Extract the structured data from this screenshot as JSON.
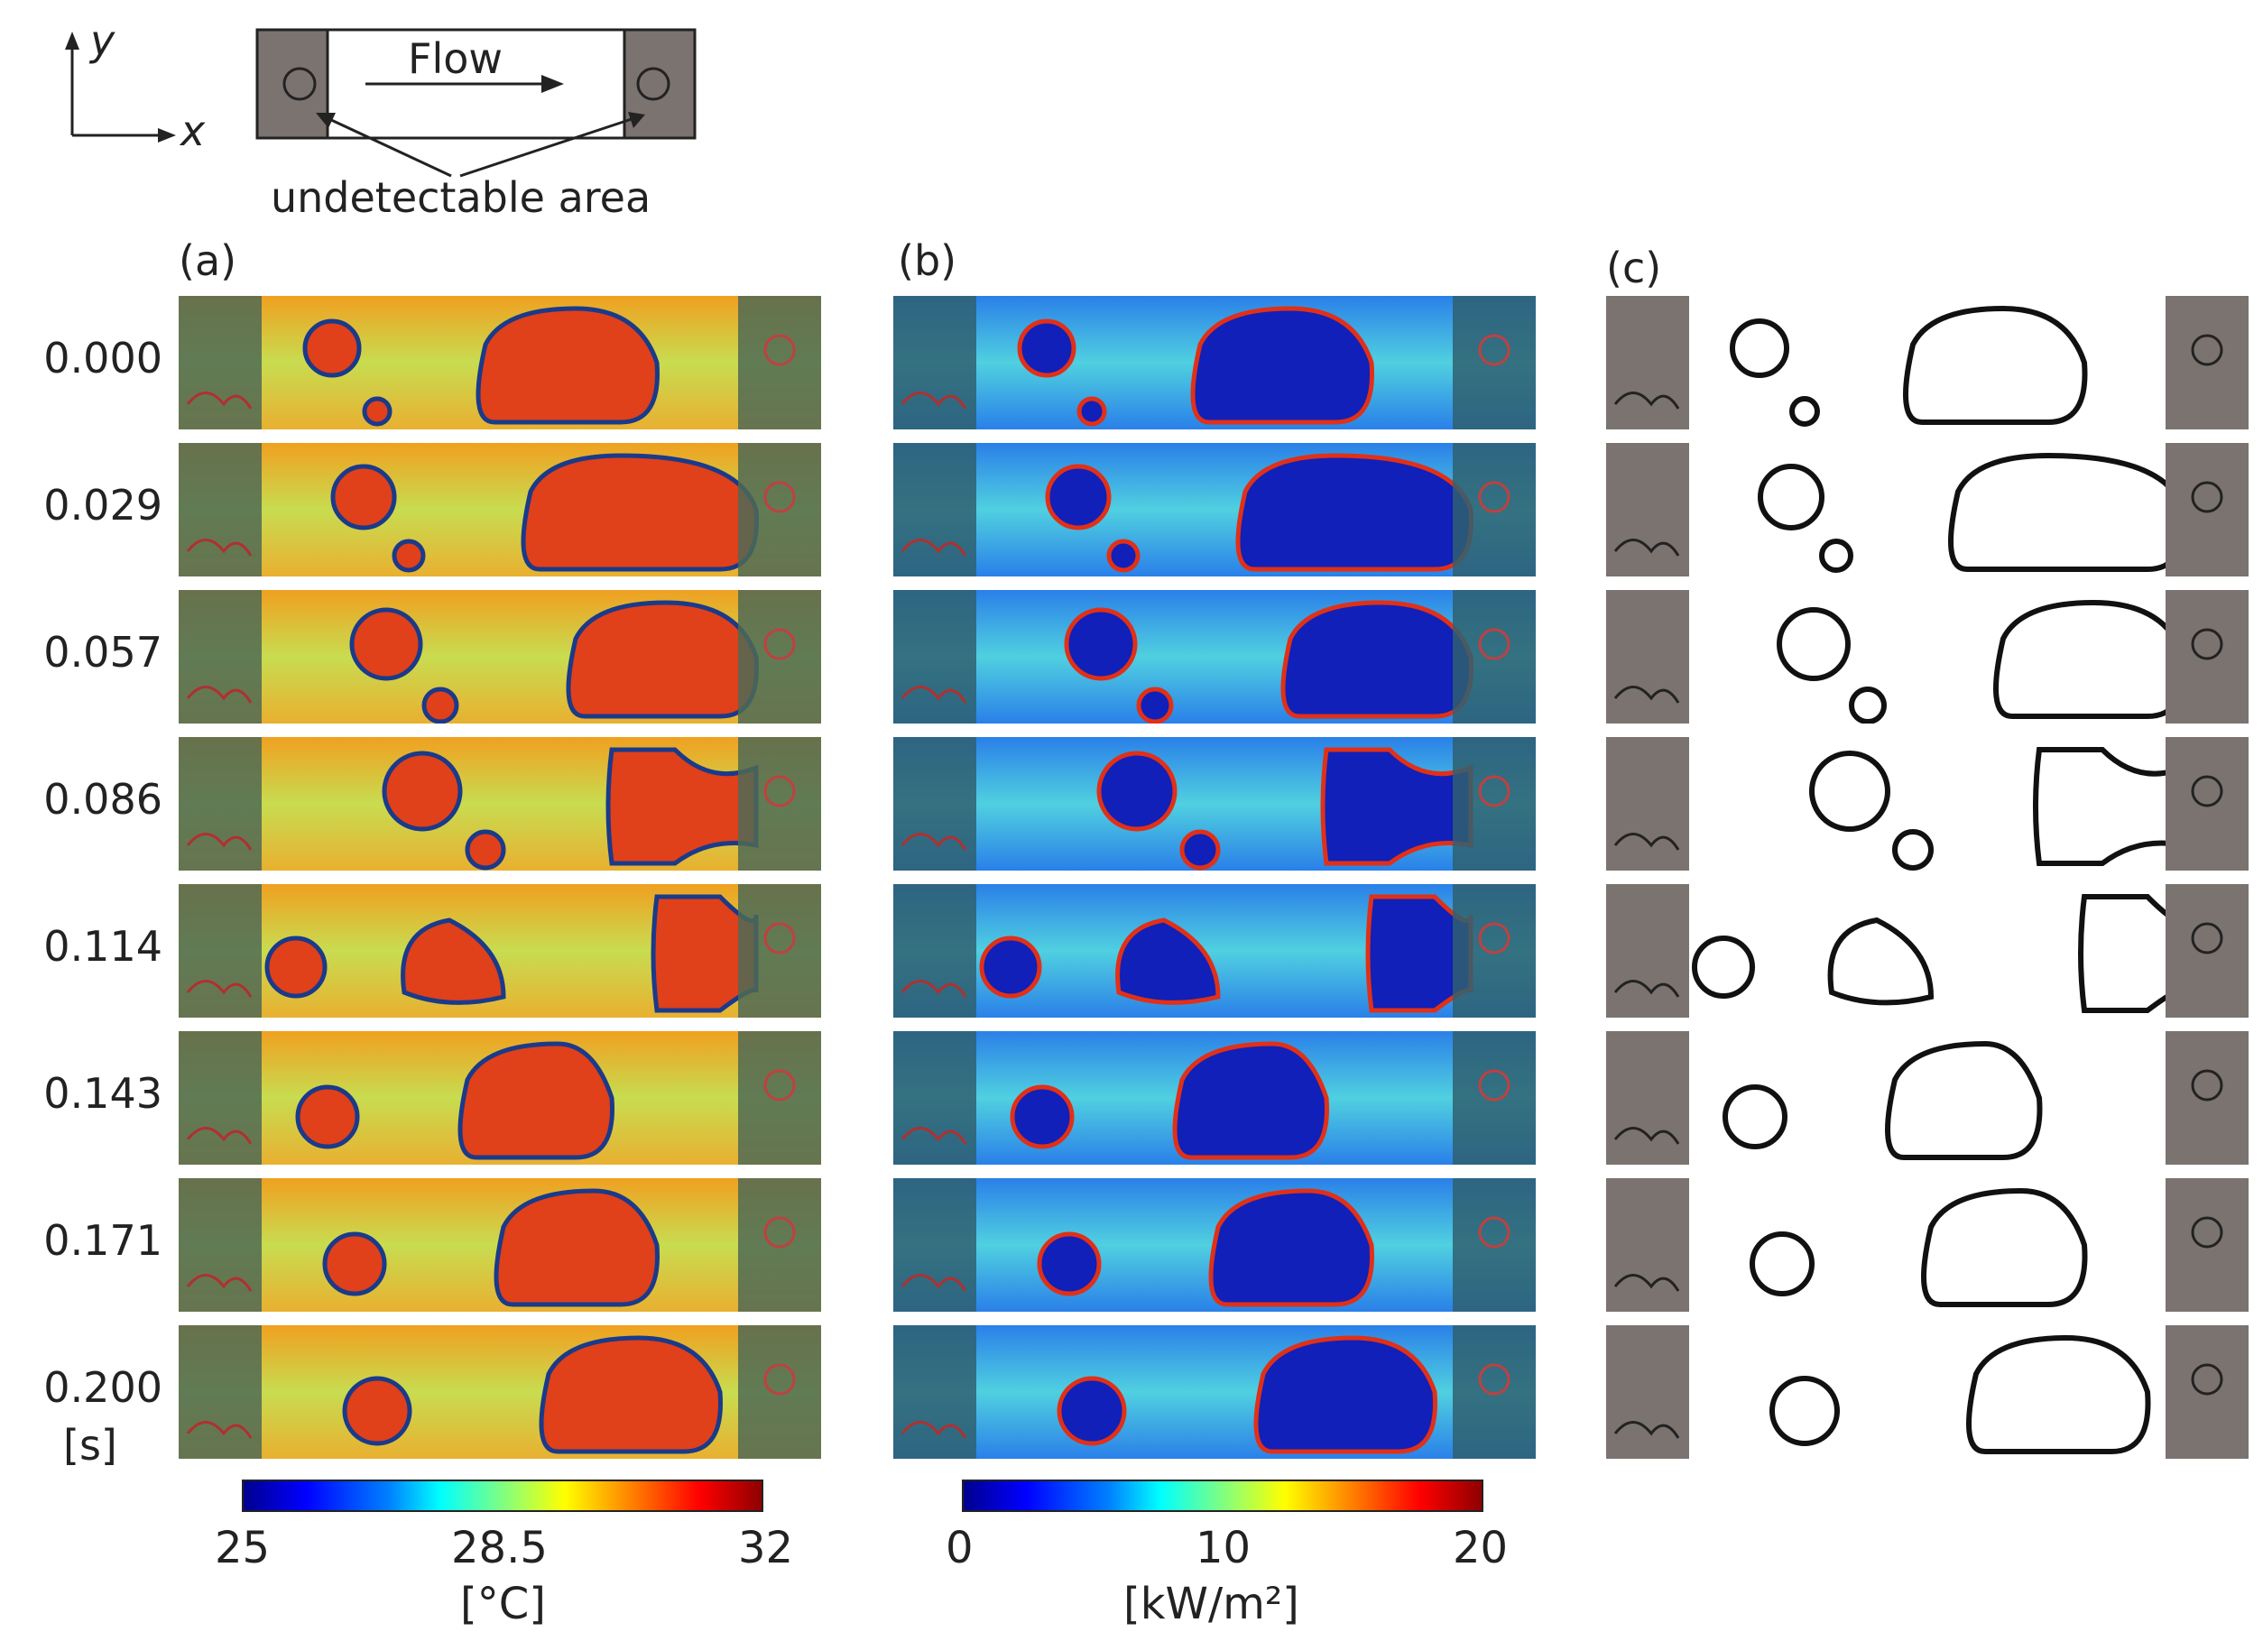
{
  "schematic": {
    "axis_y": "y",
    "axis_x": "x",
    "flow_label": "Flow",
    "undetectable_label": "undetectable area"
  },
  "panels": [
    {
      "id": "a",
      "label": "(a)",
      "kind": "temperature"
    },
    {
      "id": "b",
      "label": "(b)",
      "kind": "heat-flux"
    },
    {
      "id": "c",
      "label": "(c)",
      "kind": "interface"
    }
  ],
  "times": [
    "0.000",
    "0.029",
    "0.057",
    "0.086",
    "0.114",
    "0.143",
    "0.171",
    "0.200"
  ],
  "time_unit": "[s]",
  "colorbars": {
    "temperature": {
      "ticks": [
        "25",
        "28.5",
        "32"
      ],
      "unit": "[°C]",
      "range": [
        25,
        32
      ]
    },
    "heat_flux": {
      "ticks": [
        "0",
        "10",
        "20"
      ],
      "unit": "[kW/m²]",
      "range": [
        0,
        20
      ]
    }
  },
  "colors": {
    "undetectable_gray": "#7a7370",
    "jet_dark_blue": "#00008f",
    "jet_red": "#d00000",
    "line": "#222222"
  }
}
